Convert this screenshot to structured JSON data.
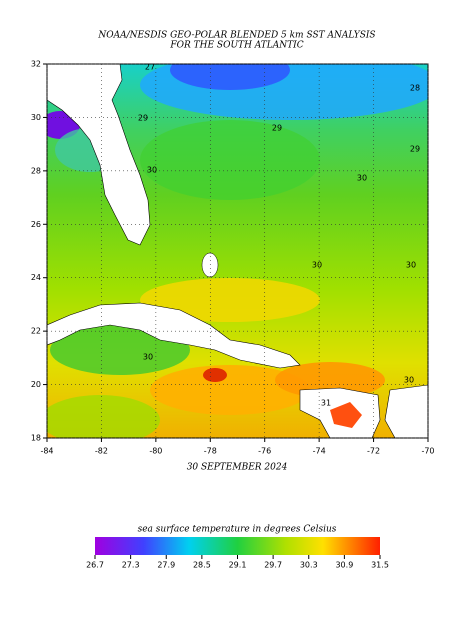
{
  "header": {
    "title_lines": [
      "NOAA/NESDIS GEO-POLAR BLENDED 5 km SST ANALYSIS",
      "FOR THE SOUTH ATLANTIC"
    ]
  },
  "map": {
    "xlim": [
      -84,
      -70
    ],
    "ylim": [
      18,
      32
    ],
    "xticks": [
      -84,
      -82,
      -80,
      -78,
      -76,
      -74,
      -72,
      -70
    ],
    "yticks": [
      18,
      20,
      22,
      24,
      26,
      28,
      30,
      32
    ],
    "date": "30 SEPTEMBER 2024",
    "contour_labels": [
      27,
      28,
      29,
      29,
      29,
      30,
      30,
      30,
      30,
      30,
      30,
      31
    ]
  },
  "colorbar": {
    "label": "sea surface temperature in degrees Celsius",
    "lim": [
      26.7,
      31.5
    ],
    "ticks": [
      26.7,
      27.3,
      27.9,
      28.5,
      29.1,
      29.7,
      30.3,
      30.9,
      31.5
    ]
  }
}
